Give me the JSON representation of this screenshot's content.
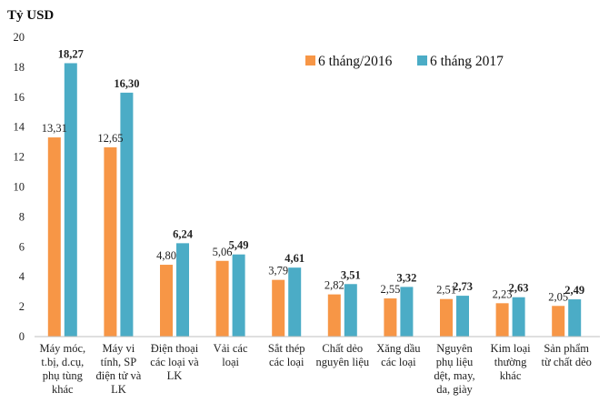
{
  "chart_data": {
    "type": "bar",
    "ylabel": "Tỷ USD",
    "ylim": [
      0,
      20
    ],
    "y_ticks": [
      "0",
      "2",
      "4",
      "6",
      "8",
      "10",
      "12",
      "14",
      "16",
      "18",
      "20"
    ],
    "grid": false,
    "legend_position": "top-right",
    "categories": [
      [
        "Máy móc,",
        "t.bị, d.cụ,",
        "phụ tùng",
        "khác"
      ],
      [
        "Máy vi",
        "tính, SP",
        "điện tử và",
        "LK"
      ],
      [
        "Điện thoại",
        "các loại và",
        "LK"
      ],
      [
        "Vải các",
        "loại"
      ],
      [
        "Sắt thép",
        "các loại"
      ],
      [
        "Chất dẻo",
        "nguyên liệu"
      ],
      [
        "Xăng dầu",
        "các loại"
      ],
      [
        "Nguyên",
        "phụ liệu",
        "dệt, may,",
        "da, giày"
      ],
      [
        "Kim loại",
        "thường",
        "khác"
      ],
      [
        "Sản phẩm",
        "từ chất dẻo"
      ]
    ],
    "series": [
      {
        "name": "6 tháng/2016",
        "color": "#F79646",
        "values": [
          13.31,
          12.65,
          4.8,
          5.06,
          3.79,
          2.82,
          2.55,
          2.51,
          2.23,
          2.05
        ],
        "labels": [
          "13,31",
          "12,65",
          "4,80",
          "5,06",
          "3,79",
          "2,82",
          "2,55",
          "2,51",
          "2,23",
          "2,05"
        ],
        "label_bold": false
      },
      {
        "name": "6 tháng 2017",
        "color": "#4BACC6",
        "values": [
          18.27,
          16.3,
          6.24,
          5.49,
          4.61,
          3.51,
          3.32,
          2.73,
          2.63,
          2.49
        ],
        "labels": [
          "18,27",
          "16,30",
          "6,24",
          "5,49",
          "4,61",
          "3,51",
          "3,32",
          "2,73",
          "2,63",
          "2,49"
        ],
        "label_bold": true
      }
    ]
  }
}
